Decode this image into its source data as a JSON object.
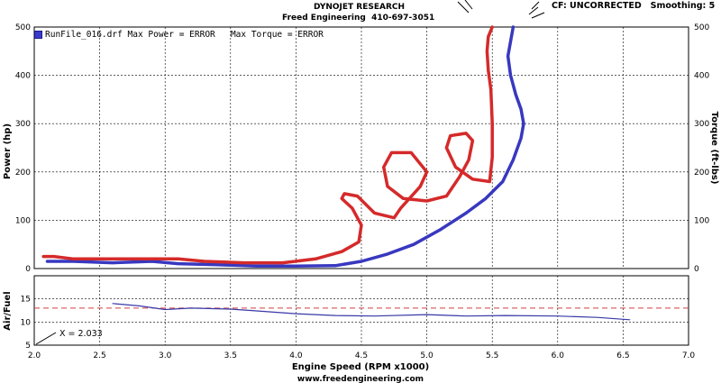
{
  "header": {
    "title": "DYNOJET RESEARCH",
    "subtitle": "Freed Engineering  410-697-3051",
    "settings": "CF: UNCORRECTED   Smoothing: 5",
    "footer_url": "www.freedengineering.com"
  },
  "legend": {
    "run_label": "RunFile_016.drf Max Power = ",
    "max_power_value": "ERROR",
    "torque_label": "Max Torque = ",
    "max_torque_value": "ERROR"
  },
  "cursor": {
    "x_readout": "X = 2.033"
  },
  "colors": {
    "power": "#3838c0",
    "torque": "#d52a2a",
    "airfuel": "#3838a8",
    "target_line": "#d04040",
    "grid": "#000000",
    "background": "#ffffff"
  },
  "chart_data": [
    {
      "type": "line",
      "title": "",
      "xlabel": "Engine Speed (RPM x1000)",
      "ylabel": "Power (hp)",
      "ylabel_right": "Torque (ft-lbs)",
      "xlim": [
        2.0,
        7.0
      ],
      "ylim": [
        0,
        500
      ],
      "ylim_right": [
        0,
        500
      ],
      "x_ticks": [
        "2.0",
        "2.5",
        "3.0",
        "3.5",
        "4.0",
        "4.5",
        "5.0",
        "5.5",
        "6.0",
        "6.5",
        "7.0"
      ],
      "y_ticks": [
        "0",
        "100",
        "200",
        "300",
        "400",
        "500"
      ],
      "y_ticks_right": [
        "0",
        "100",
        "200",
        "300",
        "400",
        "500"
      ],
      "grid": true,
      "series": [
        {
          "name": "Power",
          "x": [
            2.1,
            2.3,
            2.6,
            2.9,
            3.1,
            3.4,
            3.7,
            4.0,
            4.3,
            4.5,
            4.7,
            4.9,
            5.1,
            5.3,
            5.45,
            5.58,
            5.66,
            5.72,
            5.74,
            5.72,
            5.68,
            5.64,
            5.62,
            5.66
          ],
          "y": [
            15,
            15,
            12,
            15,
            10,
            8,
            5,
            5,
            6,
            15,
            30,
            50,
            80,
            115,
            145,
            180,
            225,
            270,
            300,
            330,
            360,
            400,
            440,
            500
          ]
        },
        {
          "name": "Torque",
          "x": [
            2.07,
            2.15,
            2.3,
            2.5,
            2.8,
            3.1,
            3.3,
            3.6,
            3.9,
            4.15,
            4.35,
            4.48,
            4.5,
            4.43,
            4.35,
            4.37,
            4.47,
            4.6,
            4.75,
            4.8,
            4.95,
            5.0,
            4.88,
            4.73,
            4.67,
            4.7,
            4.82,
            5.0,
            5.15,
            5.25,
            5.32,
            5.35,
            5.3,
            5.18,
            5.15,
            5.22,
            5.35,
            5.48,
            5.5,
            5.5,
            5.49,
            5.47,
            5.46,
            5.47,
            5.5
          ],
          "y": [
            25,
            25,
            20,
            20,
            20,
            20,
            15,
            12,
            12,
            20,
            35,
            55,
            90,
            125,
            145,
            155,
            150,
            115,
            105,
            125,
            170,
            200,
            240,
            240,
            210,
            170,
            145,
            140,
            150,
            190,
            225,
            265,
            280,
            275,
            250,
            210,
            185,
            180,
            230,
            300,
            370,
            410,
            450,
            480,
            500
          ]
        }
      ]
    },
    {
      "type": "line",
      "title": "",
      "xlabel": "Engine Speed (RPM x1000)",
      "ylabel": "Air/Fuel",
      "xlim": [
        2.0,
        7.0
      ],
      "ylim": [
        5,
        20
      ],
      "y_ticks": [
        "5",
        "10",
        "15"
      ],
      "grid": true,
      "target_line": 13.0,
      "series": [
        {
          "name": "Air/Fuel",
          "x": [
            2.6,
            2.8,
            3.0,
            3.2,
            3.5,
            3.7,
            4.0,
            4.3,
            4.6,
            5.0,
            5.3,
            5.6,
            6.0,
            6.3,
            6.55
          ],
          "y": [
            14,
            13.5,
            12.7,
            13,
            12.8,
            12.4,
            11.8,
            11.4,
            11.3,
            11.6,
            11.3,
            11.4,
            11.3,
            11.0,
            10.5
          ]
        }
      ]
    }
  ]
}
